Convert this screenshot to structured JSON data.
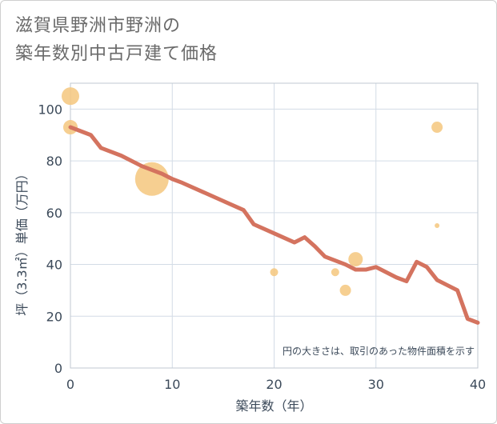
{
  "title_line1": "滋賀県野洲市野洲の",
  "title_line2": "築年数別中古戸建て価格",
  "chart_data": {
    "type": "scatter+line",
    "title": "滋賀県野洲市野洲の築年数別中古戸建て価格",
    "xlabel": "築年数（年）",
    "ylabel": "坪（3.3㎡）単価（万円）",
    "xlim": [
      0,
      40
    ],
    "ylim": [
      0,
      110
    ],
    "xticks": [
      0,
      10,
      20,
      30,
      40
    ],
    "yticks": [
      0,
      20,
      40,
      60,
      80,
      100
    ],
    "grid": true,
    "annotation": "円の大きさは、取引のあった物件面積を示す",
    "colors": {
      "line": "#d4735f",
      "bubble": "#f5c77e",
      "grid": "#d3dce6",
      "axis": "#3c4a5a"
    },
    "line": {
      "x": [
        0,
        2,
        3,
        5,
        7,
        9,
        10,
        11,
        13,
        15,
        17,
        18,
        20,
        22,
        23,
        24,
        25,
        27,
        28,
        29,
        30,
        31,
        32,
        33,
        34,
        35,
        36,
        37,
        38,
        39,
        40
      ],
      "y": [
        93,
        90,
        85,
        82,
        78,
        75,
        73,
        71.5,
        68,
        64.5,
        61,
        55.5,
        52,
        48.5,
        50.5,
        47,
        43,
        40,
        38,
        38,
        39,
        37,
        35,
        33.5,
        41,
        39,
        34,
        32,
        30,
        19,
        17.5
      ]
    },
    "bubbles": [
      {
        "x": 0,
        "y": 105,
        "r": 11
      },
      {
        "x": 0,
        "y": 93,
        "r": 9
      },
      {
        "x": 8,
        "y": 73,
        "r": 21
      },
      {
        "x": 20,
        "y": 37,
        "r": 5
      },
      {
        "x": 26,
        "y": 37,
        "r": 5
      },
      {
        "x": 27,
        "y": 30,
        "r": 7
      },
      {
        "x": 28,
        "y": 42,
        "r": 9
      },
      {
        "x": 36,
        "y": 93,
        "r": 7
      },
      {
        "x": 36,
        "y": 55,
        "r": 3
      }
    ]
  }
}
